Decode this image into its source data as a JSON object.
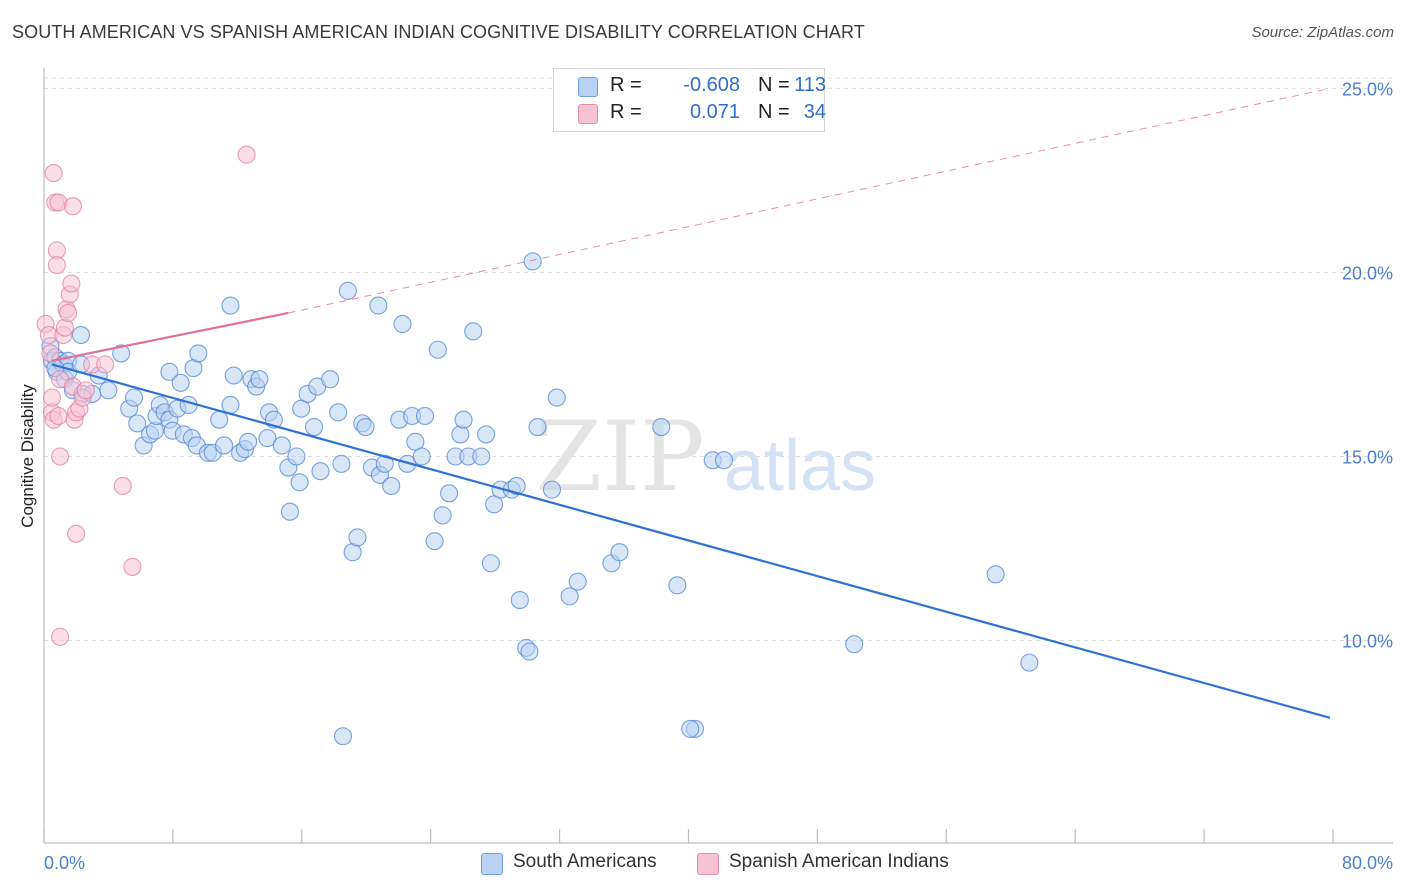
{
  "title": "SOUTH AMERICAN VS SPANISH AMERICAN INDIAN COGNITIVE DISABILITY CORRELATION CHART",
  "source": "Source: ZipAtlas.com",
  "watermark": {
    "zip": "ZIP",
    "atlas": "atlas"
  },
  "legend": {
    "rows": [
      {
        "r_label": "R =",
        "r_value": "-0.608",
        "n_label": "N =",
        "n_value": "113",
        "color": "#6fa0e0",
        "fill": "#b9d2f3"
      },
      {
        "r_label": "R =",
        "r_value": "0.071",
        "n_label": "N =",
        "n_value": "34",
        "color": "#e88aaa",
        "fill": "#f7c3d4"
      }
    ]
  },
  "bottom_legend": [
    {
      "label": "South Americans",
      "color": "#6fa0e0",
      "fill": "#b9d2f3"
    },
    {
      "label": "Spanish American Indians",
      "color": "#e88aaa",
      "fill": "#f7c3d4"
    }
  ],
  "chart_data": {
    "type": "scatter",
    "title": "SOUTH AMERICAN VS SPANISH AMERICAN INDIAN COGNITIVE DISABILITY CORRELATION CHART",
    "xlabel": "",
    "ylabel": "Cognitive Disability",
    "xlim": [
      0,
      80
    ],
    "ylim": [
      4.5,
      25.5
    ],
    "x_tick_labels": [
      "0.0%",
      "80.0%"
    ],
    "y_ticks": [
      10,
      15,
      20,
      25
    ],
    "y_tick_labels": [
      "10.0%",
      "15.0%",
      "20.0%",
      "25.0%"
    ],
    "grid": true,
    "series": [
      {
        "name": "South Americans",
        "color": "#4f86d6",
        "fill": "#b9d2f3",
        "trend": {
          "x1": 0.5,
          "y1": 17.5,
          "x2": 80,
          "y2": 7.9,
          "style": "solid",
          "line_color": "#2f72d4"
        },
        "points": [
          [
            0.4,
            18.0
          ],
          [
            0.5,
            17.6
          ],
          [
            0.7,
            17.7
          ],
          [
            0.8,
            17.3
          ],
          [
            1.0,
            17.6
          ],
          [
            1.2,
            17.5
          ],
          [
            1.3,
            17.1
          ],
          [
            1.5,
            17.6
          ],
          [
            1.5,
            17.3
          ],
          [
            1.8,
            16.8
          ],
          [
            2.3,
            18.3
          ],
          [
            2.4,
            16.7
          ],
          [
            3.0,
            16.7
          ],
          [
            3.4,
            17.2
          ],
          [
            4.0,
            16.8
          ],
          [
            4.8,
            17.8
          ],
          [
            5.3,
            16.3
          ],
          [
            5.6,
            16.6
          ],
          [
            5.8,
            15.9
          ],
          [
            6.2,
            15.3
          ],
          [
            6.6,
            15.6
          ],
          [
            6.9,
            15.7
          ],
          [
            7.0,
            16.1
          ],
          [
            7.2,
            16.4
          ],
          [
            7.5,
            16.2
          ],
          [
            7.8,
            16.0
          ],
          [
            7.8,
            17.3
          ],
          [
            8.0,
            15.7
          ],
          [
            8.3,
            16.3
          ],
          [
            8.5,
            17.0
          ],
          [
            8.7,
            15.6
          ],
          [
            9.0,
            16.4
          ],
          [
            9.3,
            17.4
          ],
          [
            9.6,
            17.8
          ],
          [
            9.2,
            15.5
          ],
          [
            9.5,
            15.3
          ],
          [
            10.2,
            15.1
          ],
          [
            10.5,
            15.1
          ],
          [
            10.9,
            16.0
          ],
          [
            11.2,
            15.3
          ],
          [
            11.6,
            16.4
          ],
          [
            11.8,
            17.2
          ],
          [
            11.6,
            19.1
          ],
          [
            12.2,
            15.1
          ],
          [
            12.5,
            15.2
          ],
          [
            12.7,
            15.4
          ],
          [
            12.9,
            17.1
          ],
          [
            13.2,
            16.9
          ],
          [
            13.4,
            17.1
          ],
          [
            13.9,
            15.5
          ],
          [
            14.0,
            16.2
          ],
          [
            14.3,
            16.0
          ],
          [
            14.8,
            15.3
          ],
          [
            15.2,
            14.7
          ],
          [
            15.3,
            13.5
          ],
          [
            15.7,
            15.0
          ],
          [
            15.9,
            14.3
          ],
          [
            16.0,
            16.3
          ],
          [
            16.4,
            16.7
          ],
          [
            16.8,
            15.8
          ],
          [
            17.0,
            16.9
          ],
          [
            17.2,
            14.6
          ],
          [
            17.8,
            17.1
          ],
          [
            18.3,
            16.2
          ],
          [
            18.5,
            14.8
          ],
          [
            18.9,
            19.5
          ],
          [
            19.2,
            12.4
          ],
          [
            19.5,
            12.8
          ],
          [
            19.8,
            15.9
          ],
          [
            20.0,
            15.8
          ],
          [
            20.4,
            14.7
          ],
          [
            20.8,
            19.1
          ],
          [
            20.9,
            14.5
          ],
          [
            21.2,
            14.8
          ],
          [
            21.6,
            14.2
          ],
          [
            22.1,
            16.0
          ],
          [
            22.3,
            18.6
          ],
          [
            22.6,
            14.8
          ],
          [
            22.9,
            16.1
          ],
          [
            23.1,
            15.4
          ],
          [
            23.5,
            15.0
          ],
          [
            23.7,
            16.1
          ],
          [
            24.3,
            12.7
          ],
          [
            24.5,
            17.9
          ],
          [
            24.8,
            13.4
          ],
          [
            25.2,
            14.0
          ],
          [
            25.6,
            15.0
          ],
          [
            25.9,
            15.6
          ],
          [
            26.1,
            16.0
          ],
          [
            26.4,
            15.0
          ],
          [
            26.7,
            18.4
          ],
          [
            27.2,
            15.0
          ],
          [
            27.5,
            15.6
          ],
          [
            27.8,
            12.1
          ],
          [
            28.0,
            13.7
          ],
          [
            28.4,
            14.1
          ],
          [
            29.1,
            14.1
          ],
          [
            29.4,
            14.2
          ],
          [
            29.6,
            11.1
          ],
          [
            30.0,
            9.8
          ],
          [
            30.4,
            20.3
          ],
          [
            30.7,
            15.8
          ],
          [
            31.6,
            14.1
          ],
          [
            31.9,
            16.6
          ],
          [
            32.7,
            11.2
          ],
          [
            33.2,
            11.6
          ],
          [
            35.3,
            12.1
          ],
          [
            35.8,
            12.4
          ],
          [
            38.4,
            15.8
          ],
          [
            39.4,
            11.5
          ],
          [
            40.5,
            7.6
          ],
          [
            41.6,
            14.9
          ],
          [
            42.3,
            14.9
          ]
        ],
        "extra_points": [
          [
            18.6,
            7.4
          ],
          [
            50.4,
            9.9
          ],
          [
            59.2,
            11.8
          ],
          [
            61.3,
            9.4
          ],
          [
            30.2,
            9.7
          ],
          [
            40.2,
            7.6
          ],
          [
            2.3,
            17.5
          ],
          [
            0.7,
            17.4
          ]
        ]
      },
      {
        "name": "Spanish American Indians",
        "color": "#e07fa0",
        "fill": "#f7c3d4",
        "trend": {
          "x1": 0.5,
          "y1": 17.6,
          "x2": 15.2,
          "y2": 18.9,
          "style": "solid",
          "line_color": "#e0709a",
          "extension": {
            "x2": 80,
            "y2": 25.0,
            "style": "dashed"
          }
        },
        "points": [
          [
            0.1,
            18.6
          ],
          [
            0.3,
            18.3
          ],
          [
            0.4,
            17.8
          ],
          [
            0.5,
            16.2
          ],
          [
            0.5,
            16.6
          ],
          [
            0.6,
            16.0
          ],
          [
            0.6,
            22.7
          ],
          [
            0.7,
            21.9
          ],
          [
            0.8,
            20.6
          ],
          [
            0.8,
            20.2
          ],
          [
            0.9,
            21.9
          ],
          [
            1.0,
            17.1
          ],
          [
            1.0,
            15.0
          ],
          [
            1.2,
            18.3
          ],
          [
            1.3,
            18.5
          ],
          [
            1.4,
            19.0
          ],
          [
            1.5,
            18.9
          ],
          [
            1.6,
            19.4
          ],
          [
            1.7,
            19.7
          ],
          [
            1.8,
            16.9
          ],
          [
            1.8,
            21.8
          ],
          [
            1.9,
            16.0
          ],
          [
            2.0,
            16.2
          ],
          [
            2.0,
            12.9
          ],
          [
            2.2,
            16.3
          ],
          [
            2.4,
            16.6
          ],
          [
            2.6,
            16.8
          ],
          [
            3.0,
            17.5
          ],
          [
            3.8,
            17.5
          ],
          [
            4.9,
            14.2
          ],
          [
            5.5,
            12.0
          ],
          [
            12.6,
            23.2
          ],
          [
            1.0,
            10.1
          ],
          [
            0.9,
            16.1
          ]
        ]
      }
    ]
  }
}
